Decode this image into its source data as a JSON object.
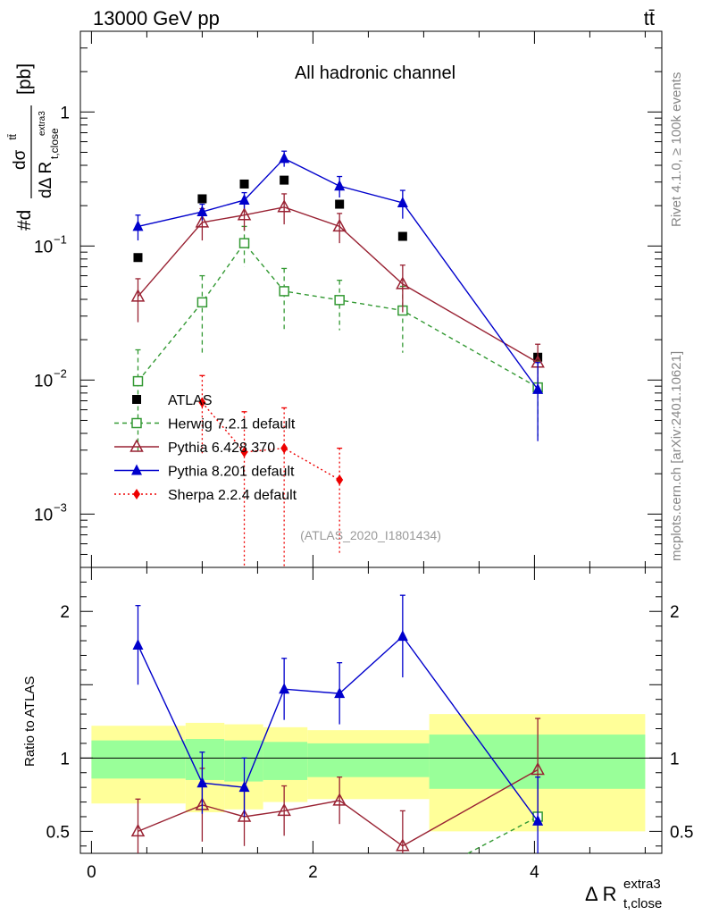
{
  "header": {
    "left": "13000 GeV pp",
    "right": "tt̄"
  },
  "side_labels": {
    "rivet": "Rivet 4.1.0, ≥ 100k events",
    "mcplots": "mcplots.cern.ch [arXiv:2401.10621]"
  },
  "chart_data": {
    "type": "scatter",
    "title": "All hadronic channel",
    "watermark": "(ATLAS_2020_I1801434)",
    "ylabel": {
      "main": "#d",
      "numerator": "dσ",
      "numerator_sup": " tt̄",
      "denominator": "dΔ R",
      "denominator_sub": "t,close",
      "denominator_subsup": "extra3",
      "unit": "[pb]"
    },
    "xlabel": {
      "main": "Δ R",
      "sub": "t,close",
      "sup": "extra3"
    },
    "ratio_ylabel": "Ratio to ATLAS",
    "xlim": [
      -0.1,
      5.15
    ],
    "ylim_log": [
      0.0004,
      4
    ],
    "ratio_ylim": [
      0.35,
      2.3
    ],
    "x_ticks": [
      {
        "value": 0,
        "label": "0"
      },
      {
        "value": 2,
        "label": "2"
      },
      {
        "value": 4,
        "label": "4"
      }
    ],
    "y_ticks": [
      {
        "value": 0.001,
        "base": "10",
        "exp": "−3"
      },
      {
        "value": 0.01,
        "base": "10",
        "exp": "−2"
      },
      {
        "value": 0.1,
        "base": "10",
        "exp": "−1"
      },
      {
        "value": 1,
        "base": "1",
        "exp": ""
      }
    ],
    "ratio_ticks": [
      {
        "value": 0.5,
        "label": "0.5"
      },
      {
        "value": 1,
        "label": "1"
      },
      {
        "value": 2,
        "label": "2"
      }
    ],
    "series": [
      {
        "name": "ATLAS",
        "marker": "square-filled",
        "color": "#000000",
        "dash": "",
        "x": [
          0.42,
          1.0,
          1.38,
          1.74,
          2.24,
          2.81,
          4.03
        ],
        "y": [
          0.082,
          0.225,
          0.29,
          0.31,
          0.205,
          0.118,
          0.0148
        ],
        "err": [
          0,
          0,
          0,
          0,
          0,
          0,
          0
        ]
      },
      {
        "name": "Herwig 7.2.1 default",
        "marker": "square-open",
        "color": "#339933",
        "dash": "5,4",
        "x": [
          0.42,
          1.0,
          1.38,
          1.74,
          2.24,
          2.81,
          4.03
        ],
        "y": [
          0.0098,
          0.038,
          0.105,
          0.046,
          0.0395,
          0.033,
          0.0088
        ],
        "err": [
          0.007,
          0.022,
          0.035,
          0.022,
          0.016,
          0.017,
          0.005
        ]
      },
      {
        "name": "Pythia 6.428 370",
        "marker": "triangle-open",
        "color": "#992233",
        "dash": "",
        "x": [
          0.42,
          1.0,
          1.38,
          1.74,
          2.24,
          2.81,
          4.03
        ],
        "y": [
          0.042,
          0.15,
          0.17,
          0.195,
          0.14,
          0.052,
          0.0135
        ],
        "err": [
          0.015,
          0.04,
          0.04,
          0.05,
          0.035,
          0.02,
          0.005
        ]
      },
      {
        "name": "Pythia 8.201 default",
        "marker": "triangle-filled",
        "color": "#0000cc",
        "dash": "",
        "x": [
          0.42,
          1.0,
          1.38,
          1.74,
          2.24,
          2.81,
          4.03
        ],
        "y": [
          0.14,
          0.18,
          0.22,
          0.45,
          0.28,
          0.21,
          0.0085
        ],
        "err": [
          0.03,
          0.025,
          0.03,
          0.06,
          0.05,
          0.05,
          0.005
        ]
      },
      {
        "name": "Sherpa 2.2.4 default",
        "marker": "diamond",
        "color": "#ee0000",
        "dash": "2,3",
        "x": [
          1.0,
          1.38,
          1.74,
          2.24
        ],
        "y": [
          0.0068,
          0.0029,
          0.0031,
          0.0018
        ],
        "err": [
          0.004,
          0.0029,
          0.0031,
          0.0013
        ]
      }
    ],
    "ratio_series": [
      {
        "name": "Herwig 7.2.1 default",
        "marker": "square-open",
        "color": "#339933",
        "dash": "5,4",
        "x": [
          3.4,
          4.03
        ],
        "y": [
          0.33,
          0.6
        ],
        "err": [
          0,
          0
        ]
      },
      {
        "name": "Pythia 6.428 370",
        "marker": "triangle-open",
        "color": "#992233",
        "dash": "",
        "x": [
          0.42,
          1.0,
          1.38,
          1.74,
          2.24,
          2.81,
          4.03
        ],
        "y": [
          0.5,
          0.68,
          0.6,
          0.64,
          0.71,
          0.4,
          0.92
        ],
        "err": [
          0.22,
          0.25,
          0.2,
          0.17,
          0.16,
          0.24,
          0.35
        ]
      },
      {
        "name": "Pythia 8.201 default",
        "marker": "triangle-filled",
        "color": "#0000cc",
        "dash": "",
        "x": [
          0.42,
          1.0,
          1.38,
          1.74,
          2.24,
          2.81,
          4.03
        ],
        "y": [
          1.77,
          0.83,
          0.8,
          1.47,
          1.44,
          1.83,
          0.57
        ],
        "err": [
          0.27,
          0.21,
          0.2,
          0.21,
          0.21,
          0.28,
          0.3
        ]
      }
    ],
    "uncertainty_bands": [
      {
        "x0": 0.0,
        "x1": 0.85,
        "inner": [
          0.86,
          1.12
        ],
        "outer": [
          0.69,
          1.22
        ]
      },
      {
        "x0": 0.85,
        "x1": 1.2,
        "inner": [
          0.85,
          1.13
        ],
        "outer": [
          0.63,
          1.24
        ]
      },
      {
        "x0": 1.2,
        "x1": 1.55,
        "inner": [
          0.84,
          1.12
        ],
        "outer": [
          0.65,
          1.23
        ]
      },
      {
        "x0": 1.55,
        "x1": 1.95,
        "inner": [
          0.85,
          1.11
        ],
        "outer": [
          0.7,
          1.21
        ]
      },
      {
        "x0": 1.95,
        "x1": 3.05,
        "inner": [
          0.87,
          1.1
        ],
        "outer": [
          0.72,
          1.19
        ]
      },
      {
        "x0": 3.05,
        "x1": 5.0,
        "inner": [
          0.79,
          1.16
        ],
        "outer": [
          0.5,
          1.3
        ]
      }
    ],
    "band_colors": {
      "inner": "#99ff99",
      "outer": "#ffff99"
    }
  }
}
